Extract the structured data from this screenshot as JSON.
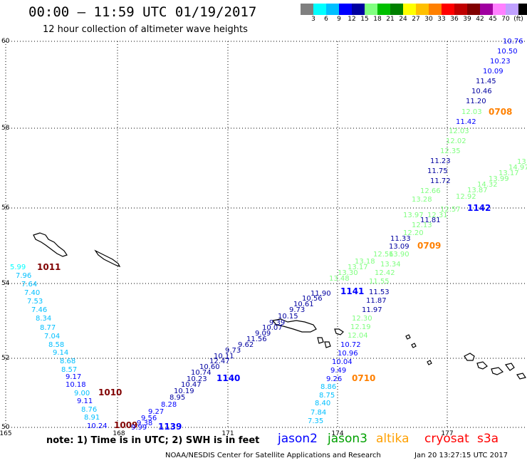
{
  "header": {
    "title": "00:00 – 11:59 UTC 01/19/2017",
    "subtitle": "12 hour collection of altimeter wave heights"
  },
  "color_scale": {
    "colors": [
      "#808080",
      "#00ffff",
      "#00bfff",
      "#0000ff",
      "#0000a0",
      "#80ff80",
      "#00c000",
      "#008000",
      "#ffff00",
      "#ffc000",
      "#ff8000",
      "#ff0000",
      "#c00000",
      "#800000",
      "#a000a0",
      "#ff80ff",
      "#c0a0ff",
      "#000000"
    ],
    "ticks": [
      "3",
      "6",
      "9",
      "12",
      "15",
      "18",
      "21",
      "24",
      "27",
      "30",
      "33",
      "36",
      "39",
      "42",
      "45",
      "70",
      "(ft)"
    ]
  },
  "axes": {
    "lon_labels": [
      "165",
      "168",
      "171",
      "174",
      "177"
    ],
    "lat_labels": [
      "60",
      "58",
      "56",
      "54",
      "52",
      "50"
    ]
  },
  "tracks": [
    {
      "time": "1011",
      "time_color": "#800000",
      "color_seq": [
        "#00ffff",
        "#00bfff",
        "#00bfff",
        "#00bfff",
        "#00bfff",
        "#00bfff",
        "#00bfff",
        "#00bfff",
        "#00bfff",
        "#00bfff",
        "#00bfff",
        "#00bfff",
        "#00bfff",
        "#0000ff",
        "#0000ff",
        "#00bfff",
        "#0000ff",
        "#00bfff",
        "#00bfff",
        "#0000ff"
      ],
      "values": [
        "5.99",
        "7.96",
        "7.64",
        "7.40",
        "7.53",
        "7.46",
        "8.34",
        "8.77",
        "7.04",
        "8.58",
        "9.14",
        "8.68",
        "8.57",
        "9.17",
        "10.18",
        "9.00",
        "9.11",
        "8.76",
        "8.91",
        "10.24"
      ]
    },
    {
      "time": "1010",
      "time_color": "#800000"
    },
    {
      "time": "1009",
      "time_color": "#800000"
    },
    {
      "time": "1139",
      "time_color": "#0000ff",
      "values": [
        "9.99",
        "9.38",
        "9.56",
        "9.27",
        "8.28",
        "8.95",
        "10.19",
        "10.47",
        "10.23",
        "10.74",
        "10.60",
        "12.47",
        "10.11",
        "9.73",
        "9.62",
        "11.56",
        "9.09",
        "10.07",
        "9.39",
        "10.15",
        "9.73",
        "10.61",
        "10.56",
        "11.90"
      ]
    },
    {
      "time": "1140",
      "time_color": "#0000ff"
    },
    {
      "time": "1141",
      "time_color": "#0000ff",
      "values": [
        "11.53",
        "11.87",
        "11.97",
        "10.72",
        "10.96",
        "10.04",
        "9.49",
        "9.26",
        "8.86",
        "8.75",
        "8.40",
        "7.84",
        "7.35"
      ]
    },
    {
      "time": "0710",
      "time_color": "#ff8000",
      "values": [
        "13.48",
        "13.30",
        "13.17",
        "13.18",
        "12.56",
        "13.90",
        "13.34",
        "12.42",
        "11.55",
        "12.30",
        "12.19",
        "12.04"
      ]
    },
    {
      "time": "0709",
      "time_color": "#ff8000",
      "values": [
        "11.33",
        "13.09",
        "12.20",
        "12.13",
        "11.81",
        "13.97",
        "12.31",
        "12.57",
        "12.92",
        "13.87",
        "14.32",
        "13.99",
        "13.17",
        "14.97",
        "13"
      ]
    },
    {
      "time": "1142",
      "time_color": "#0000ff",
      "values": [
        "11.42",
        "11.20",
        "10.46",
        "11.45",
        "10.09",
        "10.23",
        "10.50",
        "10.76",
        "12.03",
        "12.03",
        "12.02",
        "12.35",
        "11.23",
        "11.75",
        "11.72",
        "12.66",
        "13.28"
      ]
    },
    {
      "time": "0708",
      "time_color": "#ff8000"
    }
  ],
  "footer": {
    "note": "note: 1) Time is in UTC; 2) SWH is in feet",
    "satellites": [
      {
        "name": "jason2",
        "color": "#0000ff"
      },
      {
        "name": "jason3",
        "color": "#00a000"
      },
      {
        "name": "altika",
        "color": "#ffa000"
      },
      {
        "name": "cryosat",
        "color": "#ff0000"
      },
      {
        "name": "s3a",
        "color": "#ff0000"
      }
    ],
    "credit": "NOAA/NESDIS Center for Satellite Applications and Research",
    "timestamp": "Jan 20 13:27:15 UTC 2017"
  }
}
